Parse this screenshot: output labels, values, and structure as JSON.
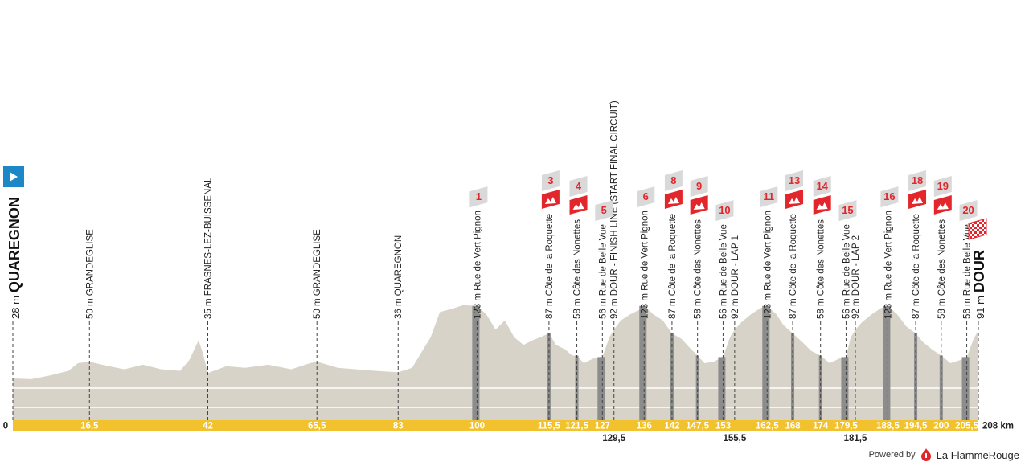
{
  "chart_data": {
    "type": "area",
    "title": "",
    "x_unit": "km",
    "total_km": 208,
    "total_label": "208 km",
    "start": {
      "label": "QUAREGNON",
      "alt": "28 m"
    },
    "finish": {
      "label": "DOUR",
      "alt": "91 m"
    },
    "km_ticks": [
      {
        "km": 0,
        "label": "0",
        "row": "base"
      },
      {
        "km": 16.5,
        "label": "16,5",
        "row": "bar"
      },
      {
        "km": 42,
        "label": "42",
        "row": "bar"
      },
      {
        "km": 65.5,
        "label": "65,5",
        "row": "bar"
      },
      {
        "km": 83,
        "label": "83",
        "row": "bar"
      },
      {
        "km": 100,
        "label": "100",
        "row": "bar"
      },
      {
        "km": 115.5,
        "label": "115,5",
        "row": "bar"
      },
      {
        "km": 121.5,
        "label": "121,5",
        "row": "bar"
      },
      {
        "km": 127,
        "label": "127",
        "row": "bar"
      },
      {
        "km": 129.5,
        "label": "129,5",
        "row": "below"
      },
      {
        "km": 136,
        "label": "136",
        "row": "bar"
      },
      {
        "km": 142,
        "label": "142",
        "row": "bar"
      },
      {
        "km": 147.5,
        "label": "147,5",
        "row": "bar"
      },
      {
        "km": 153,
        "label": "153",
        "row": "bar"
      },
      {
        "km": 155.5,
        "label": "155,5",
        "row": "below"
      },
      {
        "km": 162.5,
        "label": "162,5",
        "row": "bar"
      },
      {
        "km": 168,
        "label": "168",
        "row": "bar"
      },
      {
        "km": 174,
        "label": "174",
        "row": "bar"
      },
      {
        "km": 179.5,
        "label": "179,5",
        "row": "bar"
      },
      {
        "km": 181.5,
        "label": "181,5",
        "row": "below"
      },
      {
        "km": 188.5,
        "label": "188,5",
        "row": "bar"
      },
      {
        "km": 194.5,
        "label": "194,5",
        "row": "bar"
      },
      {
        "km": 200,
        "label": "200",
        "row": "bar"
      },
      {
        "km": 205.5,
        "label": "205,5",
        "row": "bar"
      }
    ],
    "waypoints": [
      {
        "km": 16.5,
        "label": "50 m GRANDEGLISE"
      },
      {
        "km": 42,
        "label": "35 m FRASNES-LEZ-BUISSENAL"
      },
      {
        "km": 65.5,
        "label": "50 m GRANDEGLISE"
      },
      {
        "km": 83,
        "label": "36 m QUAREGNON"
      },
      {
        "km": 100,
        "label": "123 m Rue de Vert Pignon",
        "num": "1",
        "kind": "sector"
      },
      {
        "km": 115.5,
        "label": "87 m Côte de la Roquette",
        "num": "3",
        "kind": "climb"
      },
      {
        "km": 121.5,
        "label": "58 m Côte des Nonettes",
        "num": "4",
        "kind": "climb"
      },
      {
        "km": 127,
        "label": "56 m Rue de Belle Vue",
        "num": "5",
        "kind": "sector"
      },
      {
        "km": 129.5,
        "label": "92 m DOUR - FINISH LINE (START FINAL CIRCUIT)"
      },
      {
        "km": 136,
        "label": "123 m Rue de Vert Pignon",
        "num": "6",
        "kind": "sector"
      },
      {
        "km": 142,
        "label": "87 m Côte de la Roquette",
        "num": "8",
        "kind": "climb"
      },
      {
        "km": 147.5,
        "label": "58 m Côte des Nonettes",
        "num": "9",
        "kind": "climb"
      },
      {
        "km": 153,
        "label": "56 m Rue de Belle Vue",
        "num": "10",
        "kind": "sector"
      },
      {
        "km": 155.5,
        "label": "92 m DOUR - LAP 1"
      },
      {
        "km": 162.5,
        "label": "123 m Rue de Vert Pignon",
        "num": "11",
        "kind": "sector"
      },
      {
        "km": 168,
        "label": "87 m Côte de la Roquette",
        "num": "13",
        "kind": "climb"
      },
      {
        "km": 174,
        "label": "58 m Côte des Nonettes",
        "num": "14",
        "kind": "climb"
      },
      {
        "km": 179.5,
        "label": "56 m Rue de Belle Vue",
        "num": "15",
        "kind": "sector"
      },
      {
        "km": 181.5,
        "label": "92 m DOUR - LAP 2"
      },
      {
        "km": 188.5,
        "label": "123 m Rue de Vert Pignon",
        "num": "16",
        "kind": "sector"
      },
      {
        "km": 194.5,
        "label": "87 m Côte de la Roquette",
        "num": "18",
        "kind": "climb"
      },
      {
        "km": 200,
        "label": "58 m Côte des Nonettes",
        "num": "19",
        "kind": "climb"
      },
      {
        "km": 205.5,
        "label": "56 m Rue de Belle Vue",
        "num": "20",
        "kind": "sector"
      }
    ],
    "elevation": [
      [
        0,
        28
      ],
      [
        4,
        27
      ],
      [
        8,
        32
      ],
      [
        12,
        38
      ],
      [
        14,
        48
      ],
      [
        16.5,
        50
      ],
      [
        20,
        45
      ],
      [
        24,
        40
      ],
      [
        28,
        46
      ],
      [
        32,
        40
      ],
      [
        36,
        38
      ],
      [
        38,
        52
      ],
      [
        40,
        78
      ],
      [
        41,
        60
      ],
      [
        42,
        35
      ],
      [
        46,
        44
      ],
      [
        50,
        42
      ],
      [
        55,
        46
      ],
      [
        60,
        40
      ],
      [
        64,
        48
      ],
      [
        65.5,
        50
      ],
      [
        70,
        42
      ],
      [
        74,
        40
      ],
      [
        78,
        38
      ],
      [
        83,
        36
      ],
      [
        86,
        42
      ],
      [
        88,
        62
      ],
      [
        90,
        82
      ],
      [
        92,
        115
      ],
      [
        95,
        120
      ],
      [
        97,
        124
      ],
      [
        100,
        123
      ],
      [
        102,
        112
      ],
      [
        104,
        92
      ],
      [
        106,
        104
      ],
      [
        108,
        82
      ],
      [
        110,
        72
      ],
      [
        112,
        78
      ],
      [
        114,
        83
      ],
      [
        115.5,
        87
      ],
      [
        117,
        72
      ],
      [
        119,
        66
      ],
      [
        120.5,
        58
      ],
      [
        121.5,
        58
      ],
      [
        123,
        48
      ],
      [
        125,
        54
      ],
      [
        127,
        56
      ],
      [
        128.5,
        82
      ],
      [
        129.5,
        92
      ],
      [
        131,
        104
      ],
      [
        133,
        112
      ],
      [
        135,
        118
      ],
      [
        136,
        123
      ],
      [
        138,
        112
      ],
      [
        140,
        104
      ],
      [
        142,
        87
      ],
      [
        144,
        80
      ],
      [
        146,
        67
      ],
      [
        147.5,
        58
      ],
      [
        149,
        48
      ],
      [
        151,
        50
      ],
      [
        153,
        56
      ],
      [
        154.5,
        82
      ],
      [
        155.5,
        92
      ],
      [
        157,
        102
      ],
      [
        159,
        112
      ],
      [
        161,
        120
      ],
      [
        162.5,
        123
      ],
      [
        164.5,
        112
      ],
      [
        166,
        98
      ],
      [
        168,
        87
      ],
      [
        170,
        76
      ],
      [
        172,
        64
      ],
      [
        174,
        58
      ],
      [
        176,
        48
      ],
      [
        178,
        54
      ],
      [
        179.5,
        56
      ],
      [
        180.5,
        82
      ],
      [
        181.5,
        92
      ],
      [
        183,
        102
      ],
      [
        185,
        112
      ],
      [
        187,
        120
      ],
      [
        188.5,
        123
      ],
      [
        190.5,
        112
      ],
      [
        192.5,
        96
      ],
      [
        194.5,
        87
      ],
      [
        196,
        76
      ],
      [
        198,
        66
      ],
      [
        200,
        58
      ],
      [
        202,
        48
      ],
      [
        204,
        52
      ],
      [
        205.5,
        56
      ],
      [
        207,
        80
      ],
      [
        208,
        91
      ]
    ],
    "ylim": [
      0,
      260
    ]
  },
  "footer": {
    "powered": "Powered by",
    "brand": "La FlammeRouge"
  },
  "colors": {
    "fill": "#d8d3c8",
    "bar": "#f2c12e",
    "flag": "#e3262b",
    "start": "#1e88c7",
    "sector": "#8c8c8c"
  }
}
